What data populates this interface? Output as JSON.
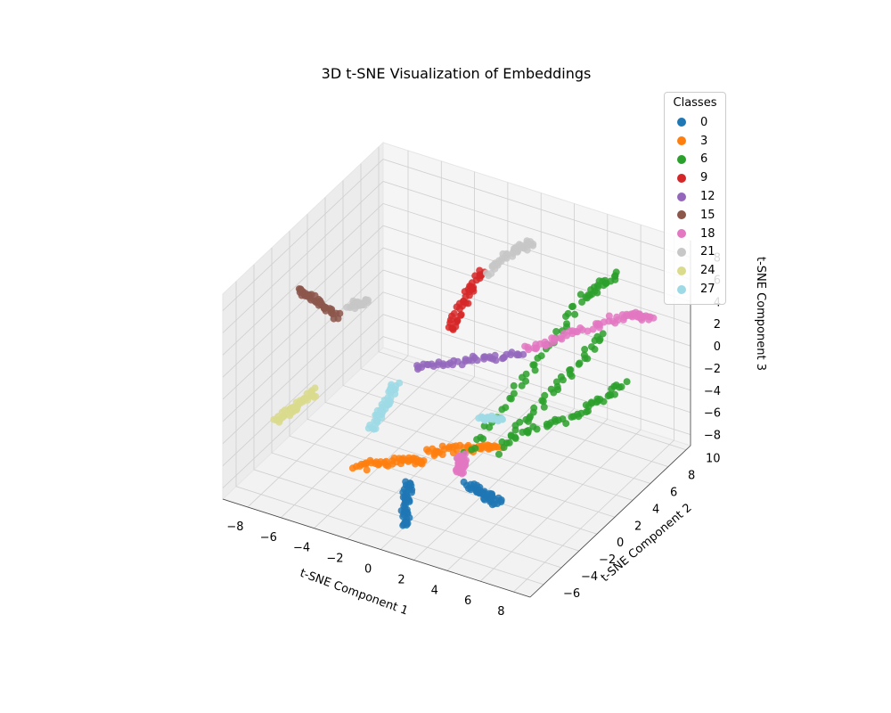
{
  "chart_data": {
    "type": "scatter",
    "projection": "3d",
    "title": "3D t-SNE Visualization of Embeddings",
    "xlabel": "t-SNE Component 1",
    "ylabel": "t-SNE Component 2",
    "zlabel": "t-SNE Component 3",
    "x_ticks": [
      "−8",
      "−6",
      "−4",
      "−2",
      "0",
      "2",
      "4",
      "6",
      "8"
    ],
    "y_ticks": [
      "−6",
      "−4",
      "−2",
      "0",
      "2",
      "4",
      "6",
      "8",
      "10"
    ],
    "z_ticks": [
      "−8",
      "−6",
      "−4",
      "−2",
      "0",
      "2",
      "4",
      "6",
      "8"
    ],
    "grid": true,
    "legend": {
      "title": "Classes",
      "placement": "top-right",
      "entries": [
        {
          "label": "0",
          "color": "#1f77b4"
        },
        {
          "label": "3",
          "color": "#ff7f0e"
        },
        {
          "label": "6",
          "color": "#2ca02c"
        },
        {
          "label": "9",
          "color": "#d62728"
        },
        {
          "label": "12",
          "color": "#9467bd"
        },
        {
          "label": "15",
          "color": "#8c564b"
        },
        {
          "label": "18",
          "color": "#e377c2"
        },
        {
          "label": "21",
          "color": "#c7c7c7"
        },
        {
          "label": "24",
          "color": "#dbdb8d"
        },
        {
          "label": "27",
          "color": "#9edae5"
        }
      ]
    },
    "clusters": [
      {
        "class": "0",
        "color": "#1f77b4",
        "path": [
          [
            1.2,
            -7.0,
            -6.8
          ],
          [
            1.0,
            -6.5,
            -5.0
          ],
          [
            0.9,
            -6.0,
            -3.5
          ]
        ]
      },
      {
        "class": "0",
        "color": "#1f77b4",
        "path": [
          [
            3.0,
            -3.5,
            -4.8
          ],
          [
            4.5,
            -4.0,
            -4.6
          ],
          [
            5.5,
            -4.5,
            -4.4
          ]
        ]
      },
      {
        "class": "3",
        "color": "#ff7f0e",
        "path": [
          [
            -4.0,
            -3.0,
            -7.0
          ],
          [
            -2.0,
            -2.0,
            -6.0
          ],
          [
            -0.5,
            -1.5,
            -5.8
          ]
        ]
      },
      {
        "class": "3",
        "color": "#ff7f0e",
        "path": [
          [
            -0.5,
            -1.5,
            -5.0
          ],
          [
            1.5,
            -0.5,
            -4.5
          ],
          [
            3.0,
            0.5,
            -4.2
          ]
        ]
      },
      {
        "class": "6",
        "color": "#2ca02c",
        "path": [
          [
            2.5,
            -3.0,
            -3.0
          ],
          [
            4.0,
            2.0,
            2.0
          ],
          [
            5.0,
            6.0,
            6.0
          ],
          [
            6.0,
            8.0,
            7.0
          ]
        ]
      },
      {
        "class": "6",
        "color": "#2ca02c",
        "path": [
          [
            3.5,
            -1.0,
            -3.5
          ],
          [
            5.0,
            3.0,
            0.0
          ],
          [
            6.0,
            6.5,
            3.0
          ]
        ]
      },
      {
        "class": "6",
        "color": "#2ca02c",
        "path": [
          [
            4.0,
            0.0,
            -2.5
          ],
          [
            6.5,
            3.0,
            -1.5
          ],
          [
            8.0,
            5.0,
            0.5
          ]
        ]
      },
      {
        "class": "9",
        "color": "#d62728",
        "path": [
          [
            -1.0,
            2.0,
            3.0
          ],
          [
            -0.5,
            3.0,
            5.5
          ],
          [
            0.0,
            4.0,
            7.5
          ]
        ]
      },
      {
        "class": "12",
        "color": "#9467bd",
        "path": [
          [
            -2.5,
            1.0,
            -0.2
          ],
          [
            0.0,
            2.5,
            0.5
          ],
          [
            2.5,
            4.0,
            1.2
          ]
        ]
      },
      {
        "class": "15",
        "color": "#8c564b",
        "path": [
          [
            -8.0,
            -2.0,
            6.5
          ],
          [
            -7.0,
            -1.5,
            5.5
          ],
          [
            -6.0,
            -1.0,
            4.0
          ]
        ]
      },
      {
        "class": "18",
        "color": "#e377c2",
        "path": [
          [
            3.0,
            3.0,
            2.5
          ],
          [
            5.0,
            5.0,
            3.5
          ],
          [
            7.0,
            7.0,
            4.5
          ],
          [
            8.0,
            8.0,
            4.0
          ]
        ]
      },
      {
        "class": "18",
        "color": "#e377c2",
        "path": [
          [
            2.0,
            -2.5,
            -5.0
          ],
          [
            2.3,
            -2.8,
            -3.8
          ],
          [
            2.5,
            -3.0,
            -2.8
          ]
        ]
      },
      {
        "class": "21",
        "color": "#c7c7c7",
        "path": [
          [
            -6.0,
            0.0,
            4.5
          ],
          [
            -5.0,
            0.5,
            4.8
          ]
        ]
      },
      {
        "class": "21",
        "color": "#c7c7c7",
        "path": [
          [
            0.0,
            4.5,
            7.0
          ],
          [
            1.0,
            5.5,
            8.5
          ],
          [
            2.0,
            6.0,
            9.5
          ]
        ]
      },
      {
        "class": "24",
        "color": "#dbdb8d",
        "path": [
          [
            -8.5,
            -3.5,
            -4.5
          ],
          [
            -7.5,
            -3.0,
            -3.0
          ],
          [
            -6.5,
            -2.5,
            -1.5
          ]
        ]
      },
      {
        "class": "27",
        "color": "#9edae5",
        "path": [
          [
            -4.0,
            -1.0,
            -5.0
          ],
          [
            -3.5,
            -0.5,
            -3.0
          ],
          [
            -3.0,
            0.0,
            -1.0
          ]
        ]
      },
      {
        "class": "27",
        "color": "#9edae5",
        "path": [
          [
            1.5,
            1.0,
            -3.0
          ],
          [
            2.5,
            1.5,
            -2.8
          ]
        ]
      }
    ]
  }
}
